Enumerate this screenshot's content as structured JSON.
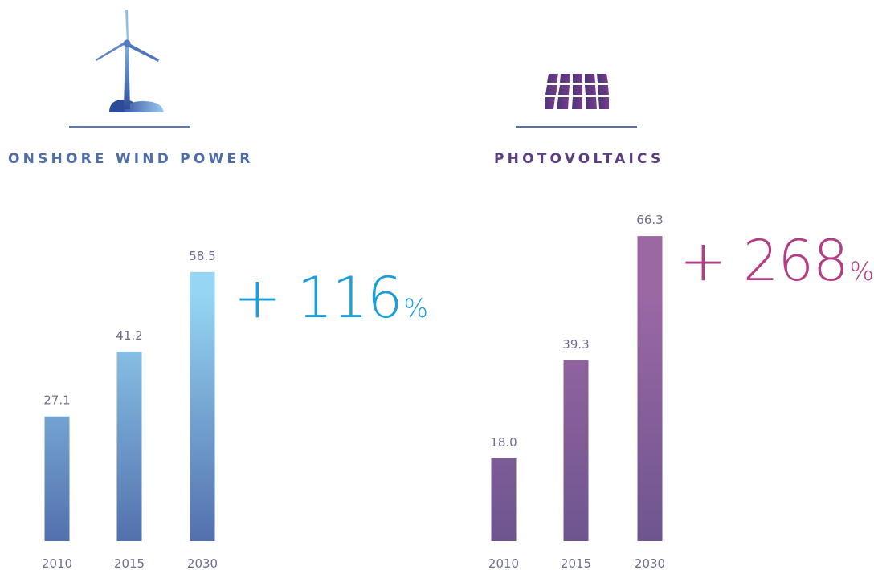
{
  "colors": {
    "wind_title": "#4f6ea9",
    "wind_rule": "#5a78b5",
    "wind_bar_top": "#96d6f4",
    "wind_bar_bottom": "#5270ad",
    "wind_growth": "#1a9fdc",
    "pv_title": "#5b3d83",
    "pv_rule": "#5a6ea8",
    "pv_bar_top": "#9b68a4",
    "pv_bar_bottom": "#6e558f",
    "pv_growth": "#b23d84",
    "value_label": "#6d6d8e",
    "year_label": "#6b6f91"
  },
  "icons": {
    "wind": "wind-turbine-icon",
    "pv": "solar-panel-icon"
  },
  "growth": {
    "wind": {
      "prefix": "+ 116",
      "unit": "%"
    },
    "pv": {
      "prefix": "+ 268",
      "unit": "%"
    }
  },
  "chart_data": [
    {
      "type": "bar",
      "title": "ONSHORE WIND POWER",
      "categories": [
        "2010",
        "2015",
        "2030"
      ],
      "values": [
        27.1,
        41.2,
        58.5
      ],
      "value_labels": [
        "27.1",
        "41.2",
        "58.5"
      ],
      "xlabel": "",
      "ylabel": "",
      "ylim": [
        0,
        75
      ],
      "grid": false
    },
    {
      "type": "bar",
      "title": "PHOTOVOLTAICS",
      "categories": [
        "2010",
        "2015",
        "2030"
      ],
      "values": [
        18.0,
        39.3,
        66.3
      ],
      "value_labels": [
        "18.0",
        "39.3",
        "66.3"
      ],
      "xlabel": "",
      "ylabel": "",
      "ylim": [
        0,
        75
      ],
      "grid": false
    }
  ]
}
